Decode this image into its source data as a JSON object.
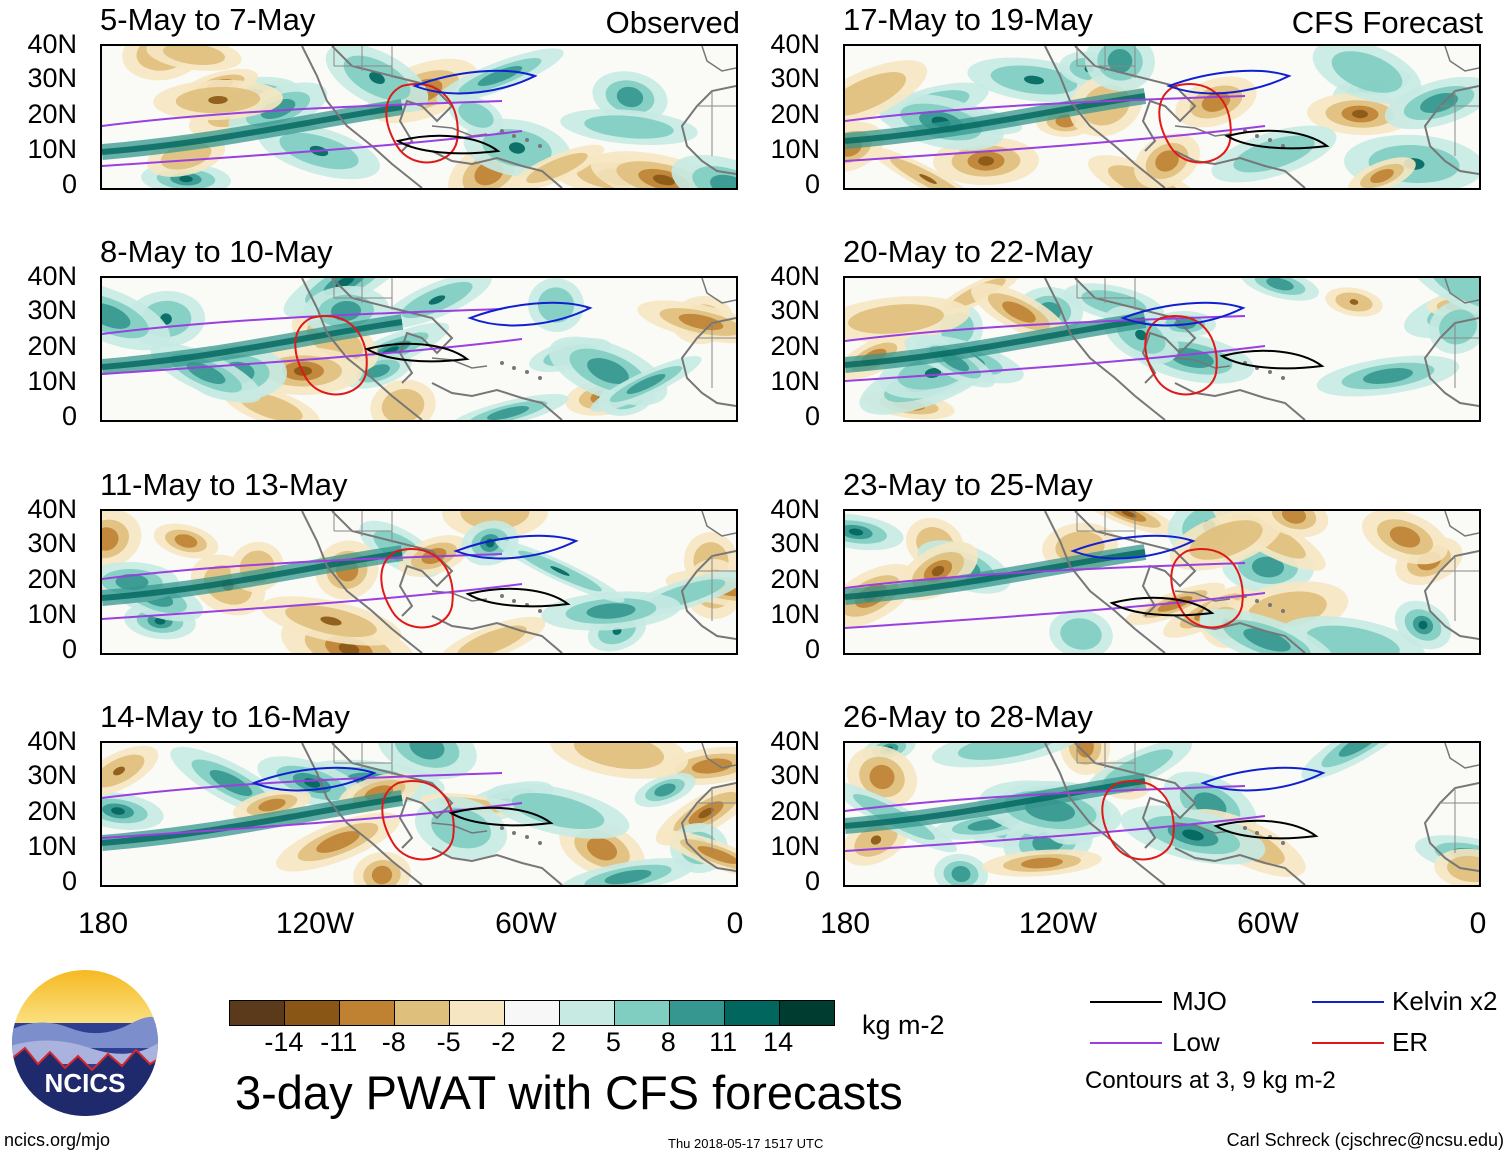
{
  "panels_left": [
    {
      "title": "5-May to 7-May",
      "label": "Observed"
    },
    {
      "title": "8-May to 10-May",
      "label": ""
    },
    {
      "title": "11-May to 13-May",
      "label": ""
    },
    {
      "title": "14-May to 16-May",
      "label": ""
    }
  ],
  "panels_right": [
    {
      "title": "17-May to 19-May",
      "label": "CFS Forecast"
    },
    {
      "title": "20-May to 22-May",
      "label": ""
    },
    {
      "title": "23-May to 25-May",
      "label": ""
    },
    {
      "title": "26-May to 28-May",
      "label": ""
    }
  ],
  "axes": {
    "lat_labels": [
      "40N",
      "30N",
      "20N",
      "10N",
      "0"
    ],
    "lon_labels": [
      "180",
      "120W",
      "60W",
      "0"
    ]
  },
  "colorbar": {
    "ticks": [
      "-14",
      "-11",
      "-8",
      "-5",
      "-2",
      "2",
      "5",
      "8",
      "11",
      "14"
    ],
    "colors": [
      "#5b3a1c",
      "#8a5615",
      "#bf8233",
      "#dfbf7c",
      "#f6e7c2",
      "#f7f7f7",
      "#c7eae3",
      "#80cdc1",
      "#35978f",
      "#01665e",
      "#003c30"
    ],
    "units": "kg m-2"
  },
  "title": "3-day PWAT with CFS forecasts",
  "legend": {
    "items": [
      {
        "label": "MJO",
        "color": "#000000"
      },
      {
        "label": "Kelvin x2",
        "color": "#1020d0"
      },
      {
        "label": "Low",
        "color": "#9a3fe0"
      },
      {
        "label": "ER",
        "color": "#e01818"
      }
    ],
    "note": "Contours at 3, 9 kg m-2"
  },
  "footer": {
    "left": "ncics.org/mjo",
    "center": "Thu 2018-05-17 1517 UTC",
    "right": "Carl Schreck (cjschrec@ncsu.edu)"
  },
  "logo": {
    "text": "NCICS"
  }
}
